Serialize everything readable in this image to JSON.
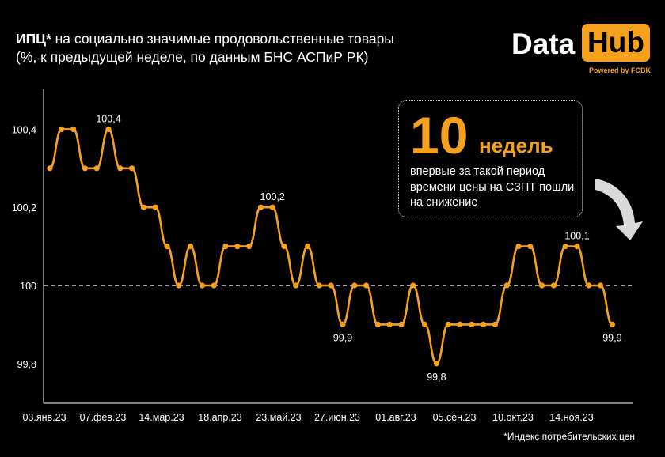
{
  "title": {
    "bold": "ИПЦ*",
    "line1_rest": " на социально значимые продовольственные товары",
    "line2": "(%, к предыдущей неделе, по данным БНС АСПиР РК)"
  },
  "logo": {
    "data": "Data",
    "hub": "Hub",
    "powered": "Powered by FCBK"
  },
  "callout": {
    "number": "10",
    "unit": "недель",
    "text": "впервые за такой период времени цены на СЗПТ пошли на снижение"
  },
  "footnote": "*Индекс потребительских цен",
  "colors": {
    "background": "#000000",
    "line": "#f5a11e",
    "text": "#ffffff",
    "arrow": "#d9d9d9"
  },
  "chart_data": {
    "type": "line",
    "title": "",
    "xlabel": "",
    "ylabel": "",
    "ylim": [
      99.7,
      100.5
    ],
    "yticks": [
      99.8,
      100,
      100.2,
      100.4
    ],
    "ytick_labels": [
      "99,8",
      "100",
      "100,2",
      "100,4"
    ],
    "reference_line": 100,
    "x_tick_labels": [
      "03.янв.23",
      "07.фев.23",
      "14.мар.23",
      "18.апр.23",
      "23.май.23",
      "27.июн.23",
      "01.авг.23",
      "05.сен.23",
      "10.окт.23",
      "14.ноя.23"
    ],
    "x_tick_week_index": [
      0,
      5,
      10,
      15,
      20,
      25,
      30,
      35,
      40,
      45
    ],
    "grid": false,
    "series": [
      {
        "values": [
          100.3,
          100.4,
          100.4,
          100.3,
          100.3,
          100.4,
          100.3,
          100.3,
          100.2,
          100.2,
          100.1,
          100.0,
          100.1,
          100.0,
          100.0,
          100.1,
          100.1,
          100.1,
          100.2,
          100.2,
          100.1,
          100.0,
          100.1,
          100.0,
          100.0,
          99.9,
          100.0,
          100.0,
          99.9,
          99.9,
          99.9,
          100.0,
          99.9,
          99.8,
          99.9,
          99.9,
          99.9,
          99.9,
          99.9,
          100.0,
          100.1,
          100.1,
          100.0,
          100.0,
          100.1,
          100.1,
          100.0,
          100.0,
          99.9
        ]
      }
    ],
    "data_labels": [
      {
        "index": 5,
        "text": "100,4",
        "position": "above"
      },
      {
        "index": 19,
        "text": "100,2",
        "position": "above"
      },
      {
        "index": 25,
        "text": "99,9",
        "position": "below"
      },
      {
        "index": 33,
        "text": "99,8",
        "position": "below"
      },
      {
        "index": 45,
        "text": "100,1",
        "position": "above"
      },
      {
        "index": 48,
        "text": "99,9",
        "position": "below"
      }
    ]
  }
}
